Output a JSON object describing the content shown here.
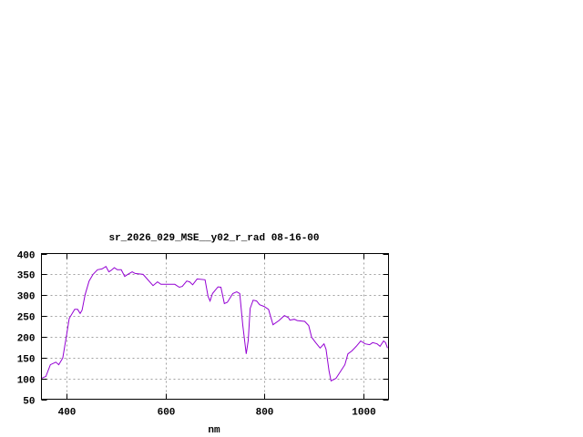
{
  "chart_data": {
    "type": "line",
    "title": "sr_2026_029_MSE__y02_r_rad 08-16-00",
    "xlabel": "nm",
    "ylabel": "",
    "xlim": [
      350,
      1050
    ],
    "ylim": [
      50,
      400
    ],
    "xticks": [
      400,
      600,
      800,
      1000
    ],
    "yticks": [
      50,
      100,
      150,
      200,
      250,
      300,
      350,
      400
    ],
    "grid": true,
    "line_color": "#9400d3",
    "series": [
      {
        "x": [
          350,
          359,
          368,
          379,
          385,
          393,
          400,
          406,
          417,
          423,
          428,
          432,
          438,
          446,
          454,
          463,
          472,
          480,
          486,
          490,
          497,
          503,
          511,
          518,
          524,
          533,
          539,
          555,
          575,
          584,
          591,
          603,
          619,
          628,
          634,
          643,
          649,
          655,
          664,
          680,
          686,
          690,
          695,
          706,
          712,
          719,
          725,
          736,
          744,
          750,
          756,
          763,
          767,
          771,
          777,
          784,
          790,
          799,
          808,
          817,
          829,
          840,
          848,
          851,
          860,
          866,
          881,
          889,
          895,
          903,
          912,
          920,
          924,
          930,
          934,
          944,
          954,
          962,
          968,
          976,
          985,
          994,
          1003,
          1012,
          1018,
          1027,
          1033,
          1040,
          1044,
          1048
        ],
        "y": [
          100,
          105,
          133,
          139,
          133,
          149,
          199,
          244,
          266,
          266,
          256,
          264,
          301,
          334,
          350,
          361,
          363,
          369,
          356,
          359,
          366,
          361,
          361,
          345,
          350,
          356,
          352,
          350,
          323,
          332,
          326,
          326,
          326,
          319,
          321,
          334,
          332,
          325,
          339,
          337,
          297,
          286,
          304,
          320,
          319,
          280,
          283,
          304,
          308,
          304,
          228,
          159,
          191,
          268,
          288,
          286,
          277,
          273,
          266,
          229,
          239,
          251,
          246,
          240,
          242,
          239,
          237,
          227,
          199,
          186,
          173,
          183,
          170,
          118,
          94,
          100,
          118,
          133,
          159,
          166,
          177,
          190,
          183,
          181,
          186,
          183,
          177,
          190,
          186,
          173
        ]
      }
    ]
  }
}
